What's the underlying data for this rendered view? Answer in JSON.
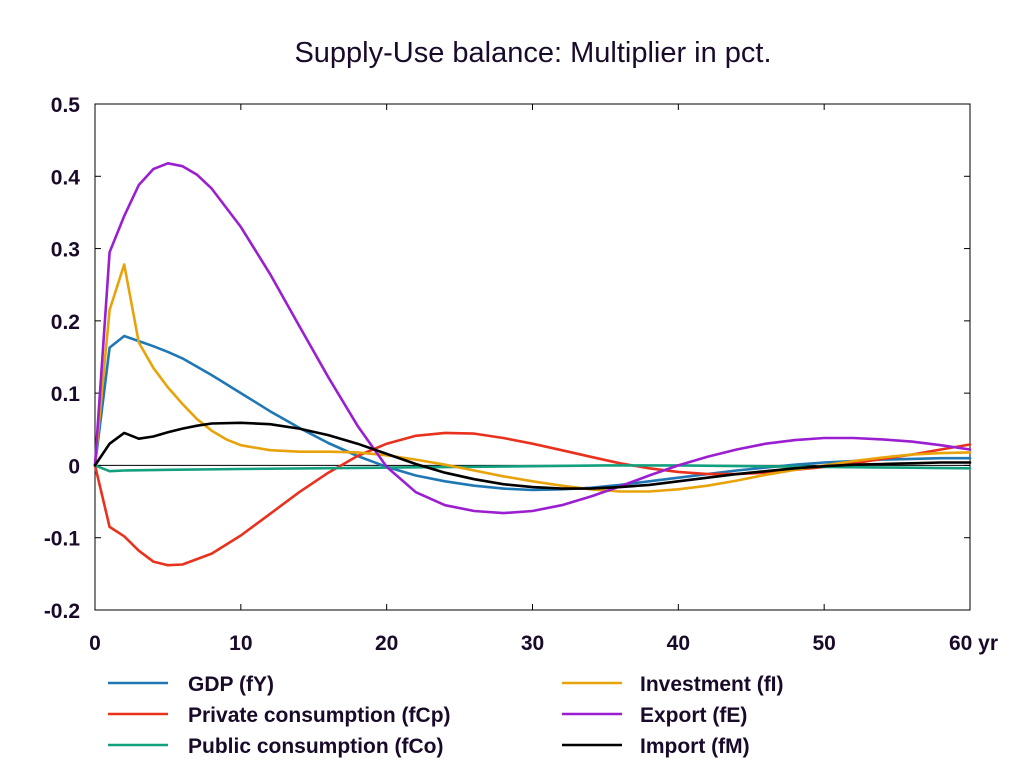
{
  "chart_data": {
    "type": "line",
    "title": "Supply-Use balance: Multiplier in pct.",
    "xlabel": "",
    "ylabel": "",
    "xlim": [
      0,
      60
    ],
    "ylim": [
      -0.2,
      0.5
    ],
    "x_ticks": [
      0,
      10,
      20,
      30,
      40,
      50,
      60
    ],
    "x_tick_labels": [
      "0",
      "10",
      "20",
      "30",
      "40",
      "50",
      "60 yr"
    ],
    "y_ticks": [
      -0.2,
      -0.1,
      0,
      0.1,
      0.2,
      0.3,
      0.4,
      0.5
    ],
    "y_tick_labels": [
      "-0.2",
      "-0.1",
      "0",
      "0.1",
      "0.2",
      "0.3",
      "0.4",
      "0.5"
    ],
    "grid": false,
    "legend_position": "bottom",
    "series": [
      {
        "name": "GDP (fY)",
        "color": "#1f78b4",
        "points": [
          [
            0,
            0
          ],
          [
            1,
            0.163
          ],
          [
            2,
            0.179
          ],
          [
            3,
            0.172
          ],
          [
            4,
            0.165
          ],
          [
            5,
            0.157
          ],
          [
            6,
            0.148
          ],
          [
            8,
            0.125
          ],
          [
            10,
            0.1
          ],
          [
            12,
            0.075
          ],
          [
            14,
            0.052
          ],
          [
            16,
            0.031
          ],
          [
            18,
            0.013
          ],
          [
            20,
            -0.002
          ],
          [
            22,
            -0.014
          ],
          [
            24,
            -0.022
          ],
          [
            26,
            -0.028
          ],
          [
            28,
            -0.032
          ],
          [
            30,
            -0.034
          ],
          [
            32,
            -0.033
          ],
          [
            34,
            -0.031
          ],
          [
            36,
            -0.027
          ],
          [
            38,
            -0.022
          ],
          [
            40,
            -0.017
          ],
          [
            42,
            -0.012
          ],
          [
            44,
            -0.007
          ],
          [
            46,
            -0.003
          ],
          [
            48,
            0.001
          ],
          [
            50,
            0.004
          ],
          [
            52,
            0.006
          ],
          [
            54,
            0.008
          ],
          [
            56,
            0.009
          ],
          [
            58,
            0.01
          ],
          [
            60,
            0.01
          ]
        ]
      },
      {
        "name": "Private consumption (fCp)",
        "color": "#e8321e",
        "points": [
          [
            0,
            0
          ],
          [
            1,
            -0.085
          ],
          [
            2,
            -0.098
          ],
          [
            3,
            -0.118
          ],
          [
            4,
            -0.133
          ],
          [
            5,
            -0.138
          ],
          [
            6,
            -0.137
          ],
          [
            8,
            -0.122
          ],
          [
            10,
            -0.097
          ],
          [
            12,
            -0.067
          ],
          [
            14,
            -0.037
          ],
          [
            16,
            -0.01
          ],
          [
            18,
            0.013
          ],
          [
            20,
            0.03
          ],
          [
            22,
            0.041
          ],
          [
            24,
            0.045
          ],
          [
            26,
            0.044
          ],
          [
            28,
            0.038
          ],
          [
            30,
            0.03
          ],
          [
            32,
            0.021
          ],
          [
            34,
            0.012
          ],
          [
            36,
            0.003
          ],
          [
            38,
            -0.004
          ],
          [
            40,
            -0.009
          ],
          [
            42,
            -0.012
          ],
          [
            44,
            -0.012
          ],
          [
            46,
            -0.01
          ],
          [
            48,
            -0.006
          ],
          [
            50,
            -0.002
          ],
          [
            52,
            0.003
          ],
          [
            54,
            0.009
          ],
          [
            56,
            0.015
          ],
          [
            58,
            0.022
          ],
          [
            60,
            0.029
          ]
        ]
      },
      {
        "name": "Public consumption (fCo)",
        "color": "#13a07e",
        "points": [
          [
            0,
            0
          ],
          [
            1,
            -0.008
          ],
          [
            2,
            -0.007
          ],
          [
            5,
            -0.006
          ],
          [
            10,
            -0.005
          ],
          [
            15,
            -0.004
          ],
          [
            20,
            -0.003
          ],
          [
            25,
            -0.002
          ],
          [
            30,
            -0.001
          ],
          [
            35,
            0
          ],
          [
            40,
            0
          ],
          [
            45,
            -0.001
          ],
          [
            50,
            -0.002
          ],
          [
            55,
            -0.003
          ],
          [
            60,
            -0.004
          ]
        ]
      },
      {
        "name": "Investment (fI)",
        "color": "#e8a30a",
        "points": [
          [
            0,
            0
          ],
          [
            1,
            0.215
          ],
          [
            2,
            0.278
          ],
          [
            3,
            0.17
          ],
          [
            4,
            0.135
          ],
          [
            5,
            0.108
          ],
          [
            6,
            0.085
          ],
          [
            7,
            0.064
          ],
          [
            8,
            0.048
          ],
          [
            9,
            0.036
          ],
          [
            10,
            0.028
          ],
          [
            12,
            0.021
          ],
          [
            14,
            0.019
          ],
          [
            16,
            0.019
          ],
          [
            18,
            0.018
          ],
          [
            20,
            0.014
          ],
          [
            22,
            0.008
          ],
          [
            24,
            0.001
          ],
          [
            26,
            -0.007
          ],
          [
            28,
            -0.015
          ],
          [
            30,
            -0.022
          ],
          [
            32,
            -0.028
          ],
          [
            34,
            -0.033
          ],
          [
            36,
            -0.036
          ],
          [
            38,
            -0.036
          ],
          [
            40,
            -0.033
          ],
          [
            42,
            -0.028
          ],
          [
            44,
            -0.021
          ],
          [
            46,
            -0.013
          ],
          [
            48,
            -0.006
          ],
          [
            50,
            0
          ],
          [
            52,
            0.006
          ],
          [
            54,
            0.011
          ],
          [
            56,
            0.015
          ],
          [
            58,
            0.017
          ],
          [
            60,
            0.018
          ]
        ]
      },
      {
        "name": "Export (fE)",
        "color": "#9b1fd0",
        "points": [
          [
            0,
            0
          ],
          [
            1,
            0.295
          ],
          [
            2,
            0.345
          ],
          [
            3,
            0.388
          ],
          [
            4,
            0.41
          ],
          [
            5,
            0.418
          ],
          [
            6,
            0.414
          ],
          [
            7,
            0.402
          ],
          [
            8,
            0.383
          ],
          [
            10,
            0.33
          ],
          [
            12,
            0.265
          ],
          [
            14,
            0.193
          ],
          [
            16,
            0.122
          ],
          [
            18,
            0.055
          ],
          [
            20,
            -0.002
          ],
          [
            22,
            -0.037
          ],
          [
            24,
            -0.055
          ],
          [
            26,
            -0.063
          ],
          [
            28,
            -0.066
          ],
          [
            30,
            -0.063
          ],
          [
            32,
            -0.055
          ],
          [
            34,
            -0.043
          ],
          [
            36,
            -0.029
          ],
          [
            38,
            -0.014
          ],
          [
            40,
            0
          ],
          [
            42,
            0.012
          ],
          [
            44,
            0.022
          ],
          [
            46,
            0.03
          ],
          [
            48,
            0.035
          ],
          [
            50,
            0.038
          ],
          [
            52,
            0.038
          ],
          [
            54,
            0.036
          ],
          [
            56,
            0.033
          ],
          [
            58,
            0.028
          ],
          [
            60,
            0.022
          ]
        ]
      },
      {
        "name": "Import (fM)",
        "color": "#000000",
        "points": [
          [
            0,
            0
          ],
          [
            1,
            0.03
          ],
          [
            2,
            0.045
          ],
          [
            3,
            0.037
          ],
          [
            4,
            0.04
          ],
          [
            5,
            0.046
          ],
          [
            6,
            0.051
          ],
          [
            7,
            0.055
          ],
          [
            8,
            0.058
          ],
          [
            10,
            0.059
          ],
          [
            12,
            0.057
          ],
          [
            14,
            0.051
          ],
          [
            16,
            0.042
          ],
          [
            18,
            0.03
          ],
          [
            20,
            0.016
          ],
          [
            22,
            0.002
          ],
          [
            24,
            -0.01
          ],
          [
            26,
            -0.019
          ],
          [
            28,
            -0.026
          ],
          [
            30,
            -0.03
          ],
          [
            32,
            -0.032
          ],
          [
            34,
            -0.032
          ],
          [
            36,
            -0.03
          ],
          [
            38,
            -0.027
          ],
          [
            40,
            -0.022
          ],
          [
            42,
            -0.017
          ],
          [
            44,
            -0.012
          ],
          [
            46,
            -0.008
          ],
          [
            48,
            -0.004
          ],
          [
            50,
            -0.001
          ],
          [
            52,
            0.001
          ],
          [
            54,
            0.002
          ],
          [
            56,
            0.003
          ],
          [
            58,
            0.004
          ],
          [
            60,
            0.004
          ]
        ]
      }
    ],
    "legend_order": [
      0,
      3,
      1,
      4,
      2,
      5
    ]
  }
}
